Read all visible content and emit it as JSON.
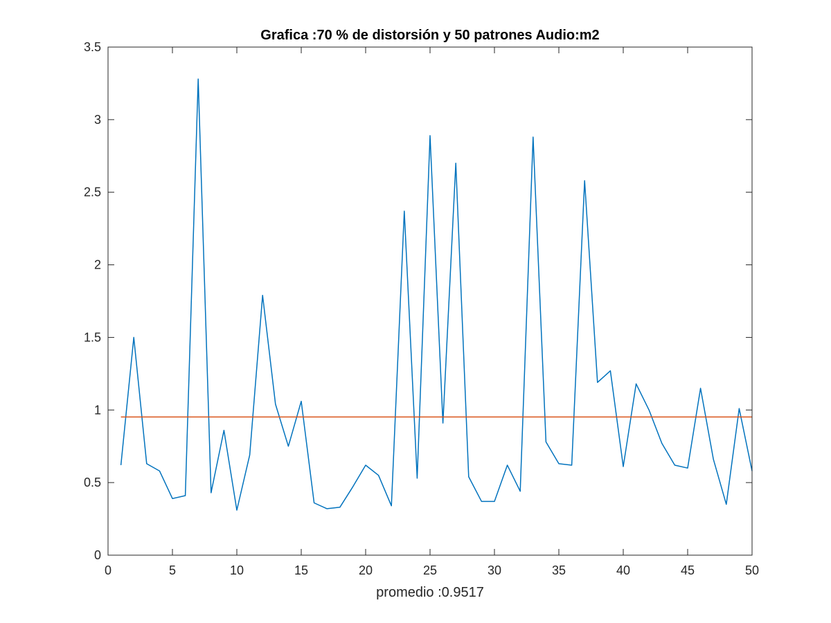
{
  "chart_data": {
    "type": "line",
    "title": "Grafica :70 % de distorsión y 50 patrones Audio:m2",
    "xlabel": "promedio :0.9517",
    "ylabel": "",
    "xlim": [
      0,
      50
    ],
    "ylim": [
      0,
      3.5
    ],
    "xticks": [
      0,
      5,
      10,
      15,
      20,
      25,
      30,
      35,
      40,
      45,
      50
    ],
    "yticks": [
      0,
      0.5,
      1,
      1.5,
      2,
      2.5,
      3,
      3.5
    ],
    "xtick_labels": [
      "0",
      "5",
      "10",
      "15",
      "20",
      "25",
      "30",
      "35",
      "40",
      "45",
      "50"
    ],
    "ytick_labels": [
      "0",
      "0.5",
      "1",
      "1.5",
      "2",
      "2.5",
      "3",
      "3.5"
    ],
    "grid": false,
    "legend": "none",
    "series": [
      {
        "color": "#0072BD",
        "x": [
          1,
          2,
          3,
          4,
          5,
          6,
          7,
          8,
          9,
          10,
          11,
          12,
          13,
          14,
          15,
          16,
          17,
          18,
          19,
          20,
          21,
          22,
          23,
          24,
          25,
          26,
          27,
          28,
          29,
          30,
          31,
          32,
          33,
          34,
          35,
          36,
          37,
          38,
          39,
          40,
          41,
          42,
          43,
          44,
          45,
          46,
          47,
          48,
          49,
          50
        ],
        "y": [
          0.62,
          1.5,
          0.63,
          0.58,
          0.39,
          0.41,
          3.28,
          0.43,
          0.86,
          0.31,
          0.69,
          1.79,
          1.04,
          0.75,
          1.06,
          0.36,
          0.32,
          0.33,
          0.47,
          0.62,
          0.55,
          0.34,
          2.37,
          0.53,
          2.89,
          0.91,
          2.7,
          0.54,
          0.37,
          0.37,
          0.62,
          0.44,
          2.88,
          0.78,
          0.63,
          0.62,
          2.58,
          1.19,
          1.27,
          0.61,
          1.18,
          1.0,
          0.77,
          0.62,
          0.6,
          1.15,
          0.66,
          0.35,
          1.01,
          0.58
        ]
      },
      {
        "color": "#D95319",
        "x": [
          1,
          50
        ],
        "y": [
          0.9517,
          0.9517
        ]
      }
    ]
  }
}
